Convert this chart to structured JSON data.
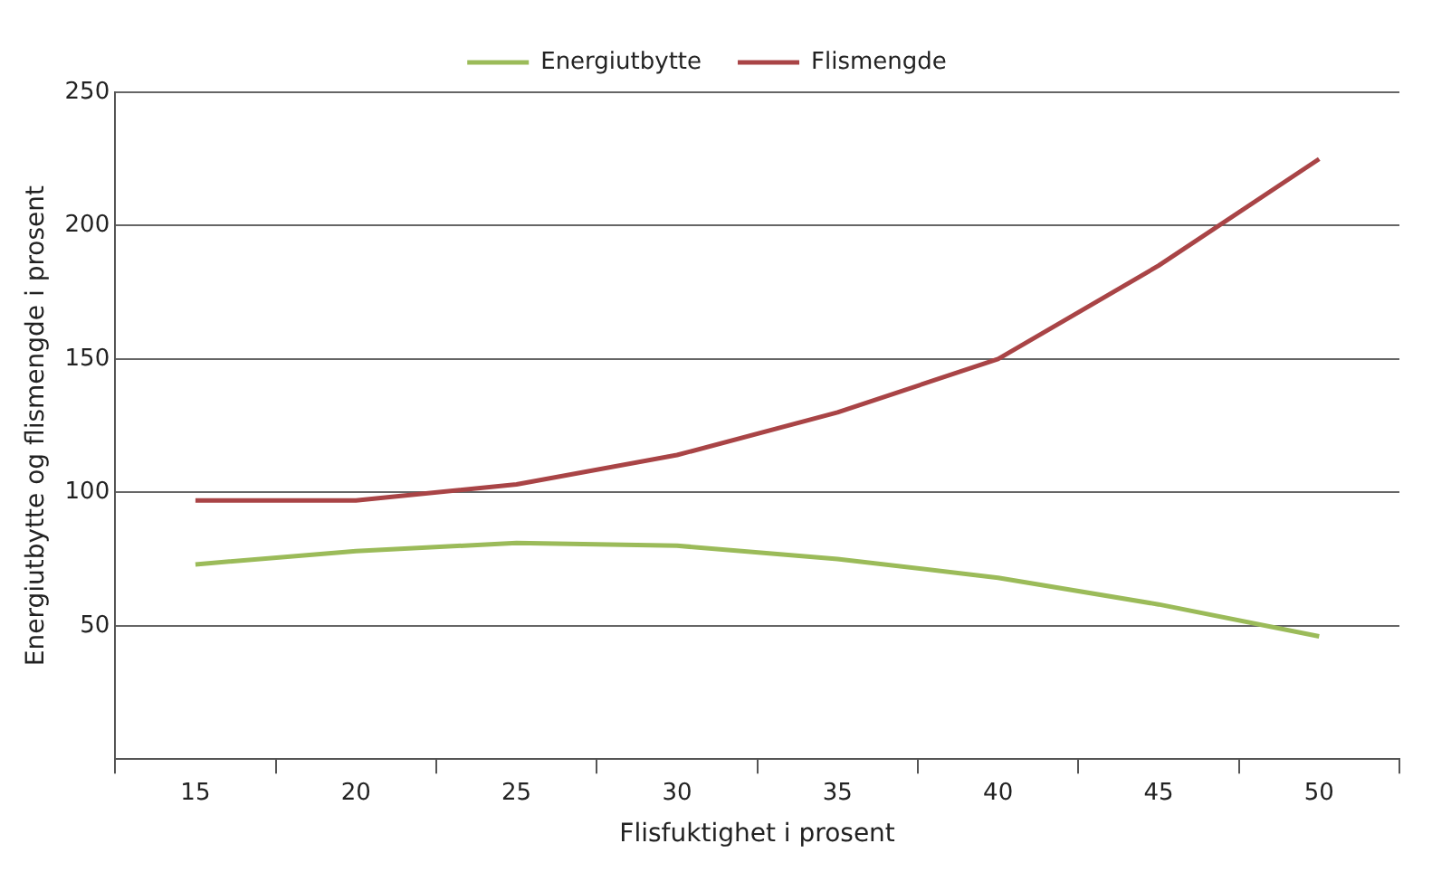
{
  "chart_data": {
    "type": "line",
    "xlabel": "Flisfuktighet i prosent",
    "ylabel": "Energiutbytte og flismengde i prosent",
    "categories": [
      "15",
      "20",
      "25",
      "30",
      "35",
      "40",
      "45",
      "50"
    ],
    "series": [
      {
        "name": "Energiutbytte",
        "color": "#9bbb59",
        "values": [
          73,
          78,
          81,
          80,
          75,
          68,
          58,
          46
        ]
      },
      {
        "name": "Flismengde",
        "color": "#a94446",
        "values": [
          97,
          97,
          103,
          114,
          130,
          150,
          185,
          225
        ]
      }
    ],
    "ylim": [
      0,
      250
    ],
    "yticks": [
      {
        "value": 0,
        "label": null
      },
      50,
      100,
      150,
      200,
      250
    ],
    "grid": "y",
    "legend": "top",
    "marker": "none",
    "line_style": "solid"
  }
}
